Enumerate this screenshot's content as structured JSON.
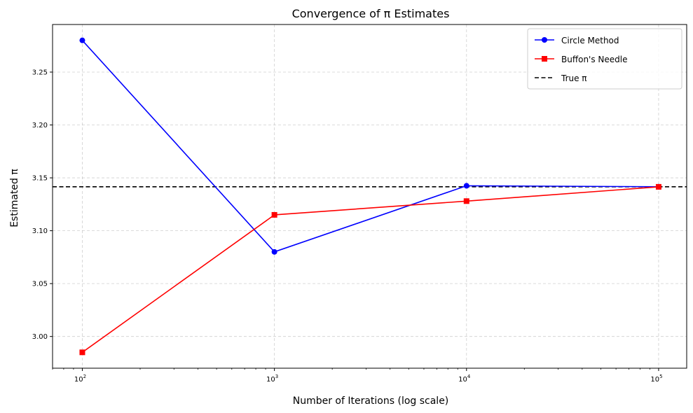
{
  "chart_data": {
    "type": "line",
    "title": "Convergence of π Estimates",
    "xlabel": "Number of Iterations (log scale)",
    "ylabel": "Estimated π",
    "x_scale": "log",
    "xlim": [
      70,
      140000
    ],
    "ylim": [
      2.97,
      3.295
    ],
    "x": [
      100,
      1000,
      10000,
      100000
    ],
    "x_tick_values": [
      100,
      1000,
      10000,
      100000
    ],
    "x_tick_labels": [
      {
        "base": "10",
        "exp": "2"
      },
      {
        "base": "10",
        "exp": "3"
      },
      {
        "base": "10",
        "exp": "4"
      },
      {
        "base": "10",
        "exp": "5"
      }
    ],
    "y_ticks": [
      3.0,
      3.05,
      3.1,
      3.15,
      3.2,
      3.25
    ],
    "y_tick_labels": [
      "3.00",
      "3.05",
      "3.10",
      "3.15",
      "3.20",
      "3.25"
    ],
    "grid": true,
    "legend_position": "top-right",
    "series": [
      {
        "name": "Circle Method",
        "color": "#0000ff",
        "marker": "circle",
        "values": [
          3.28,
          3.08,
          3.1425,
          3.1416
        ]
      },
      {
        "name": "Buffon's Needle",
        "color": "#ff0000",
        "marker": "square",
        "values": [
          2.985,
          3.115,
          3.128,
          3.1415
        ]
      }
    ],
    "reference_line": {
      "name": "True π",
      "value": 3.14159,
      "color": "#000000",
      "style": "dashed"
    }
  }
}
